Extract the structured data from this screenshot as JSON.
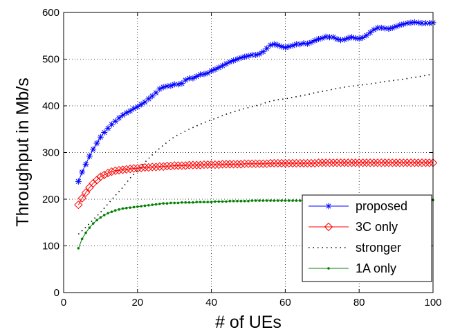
{
  "chart_data": {
    "type": "line",
    "title": "",
    "xlabel": "# of UEs",
    "ylabel": "Throughput in Mb/s",
    "xlim": [
      0,
      100
    ],
    "ylim": [
      0,
      600
    ],
    "xticks": [
      "0",
      "20",
      "40",
      "60",
      "80",
      "100"
    ],
    "yticks": [
      "0",
      "100",
      "200",
      "300",
      "400",
      "500",
      "600"
    ],
    "grid": true,
    "legend_position": "bottom-right",
    "series": [
      {
        "name": "proposed",
        "color": "#0000ff",
        "marker": "asterisk",
        "line": "solid",
        "x": [
          4,
          5,
          6,
          7,
          8,
          9,
          10,
          11,
          12,
          13,
          14,
          15,
          16,
          17,
          18,
          19,
          20,
          21,
          22,
          23,
          24,
          25,
          26,
          27,
          28,
          29,
          30,
          31,
          32,
          33,
          34,
          35,
          36,
          37,
          38,
          39,
          40,
          41,
          42,
          43,
          44,
          45,
          46,
          47,
          48,
          49,
          50,
          51,
          52,
          53,
          54,
          55,
          56,
          57,
          58,
          59,
          60,
          61,
          62,
          63,
          64,
          65,
          66,
          67,
          68,
          69,
          70,
          71,
          72,
          73,
          74,
          75,
          76,
          77,
          78,
          79,
          80,
          81,
          82,
          83,
          84,
          85,
          86,
          87,
          88,
          89,
          90,
          91,
          92,
          93,
          94,
          95,
          96,
          97,
          98,
          99,
          100
        ],
        "y": [
          238,
          258,
          275,
          292,
          307,
          320,
          333,
          343,
          352,
          360,
          367,
          374,
          380,
          385,
          389,
          394,
          398,
          403,
          408,
          415,
          421,
          428,
          436,
          440,
          442,
          443,
          446,
          446,
          448,
          455,
          459,
          459,
          463,
          467,
          468,
          470,
          475,
          478,
          482,
          486,
          490,
          494,
          497,
          500,
          503,
          505,
          507,
          509,
          509,
          511,
          516,
          523,
          530,
          532,
          530,
          527,
          525,
          527,
          529,
          532,
          532,
          534,
          533,
          536,
          540,
          543,
          545,
          548,
          547,
          547,
          543,
          541,
          542,
          545,
          547,
          545,
          544,
          546,
          551,
          557,
          563,
          567,
          567,
          566,
          565,
          567,
          570,
          573,
          575,
          577,
          578,
          579,
          578,
          577,
          577,
          577,
          578
        ]
      },
      {
        "name": "3C only",
        "color": "#ff0000",
        "marker": "diamond",
        "line": "solid",
        "x": [
          4,
          5,
          6,
          7,
          8,
          9,
          10,
          11,
          12,
          13,
          14,
          15,
          16,
          17,
          18,
          19,
          20,
          21,
          22,
          23,
          24,
          25,
          26,
          27,
          28,
          29,
          30,
          31,
          32,
          33,
          34,
          35,
          36,
          37,
          38,
          39,
          40,
          41,
          42,
          43,
          44,
          45,
          46,
          47,
          48,
          49,
          50,
          51,
          52,
          53,
          54,
          55,
          56,
          57,
          58,
          59,
          60,
          61,
          62,
          63,
          64,
          65,
          66,
          67,
          68,
          69,
          70,
          71,
          72,
          73,
          74,
          75,
          76,
          77,
          78,
          79,
          80,
          81,
          82,
          83,
          84,
          85,
          86,
          87,
          88,
          89,
          90,
          91,
          92,
          93,
          94,
          95,
          96,
          97,
          98,
          99,
          100
        ],
        "y": [
          188,
          202,
          214,
          225,
          234,
          241,
          248,
          252,
          256,
          259,
          261,
          262,
          263,
          264,
          265,
          266,
          266,
          267,
          268,
          268,
          269,
          269,
          270,
          270,
          271,
          271,
          272,
          272,
          272,
          272,
          273,
          273,
          273,
          273,
          274,
          274,
          274,
          274,
          274,
          275,
          275,
          275,
          275,
          275,
          275,
          276,
          276,
          276,
          276,
          276,
          276,
          276,
          277,
          277,
          277,
          277,
          277,
          277,
          277,
          277,
          277,
          277,
          277,
          277,
          277,
          278,
          278,
          278,
          278,
          278,
          278,
          278,
          278,
          278,
          278,
          278,
          278,
          278,
          278,
          278,
          278,
          278,
          278,
          278,
          278,
          278,
          278,
          278,
          278,
          278,
          278,
          278,
          278,
          278,
          278,
          278,
          278
        ]
      },
      {
        "name": "stronger",
        "color": "#000000",
        "marker": "none",
        "line": "dotted",
        "x": [
          4,
          6,
          8,
          10,
          12,
          14,
          16,
          18,
          20,
          22,
          24,
          26,
          28,
          30,
          32,
          34,
          36,
          38,
          40,
          42,
          44,
          46,
          48,
          50,
          52,
          54,
          56,
          58,
          60,
          62,
          64,
          66,
          68,
          70,
          72,
          74,
          76,
          78,
          80,
          82,
          84,
          86,
          88,
          90,
          92,
          94,
          96,
          98,
          100
        ],
        "y": [
          125,
          140,
          156,
          172,
          190,
          208,
          225,
          245,
          262,
          279,
          295,
          309,
          322,
          334,
          342,
          350,
          357,
          364,
          370,
          376,
          382,
          387,
          392,
          396,
          400,
          405,
          410,
          413,
          415,
          418,
          421,
          424,
          428,
          431,
          434,
          437,
          440,
          442,
          444,
          446,
          448,
          451,
          453,
          455,
          457,
          460,
          462,
          465,
          468
        ]
      },
      {
        "name": "1A only",
        "color": "#008000",
        "marker": "dot",
        "line": "solid",
        "x": [
          4,
          5,
          6,
          7,
          8,
          9,
          10,
          11,
          12,
          13,
          14,
          15,
          16,
          17,
          18,
          19,
          20,
          21,
          22,
          23,
          24,
          25,
          26,
          27,
          28,
          29,
          30,
          31,
          32,
          33,
          34,
          35,
          36,
          37,
          38,
          39,
          40,
          41,
          42,
          43,
          44,
          45,
          46,
          47,
          48,
          49,
          50,
          51,
          52,
          53,
          54,
          55,
          56,
          57,
          58,
          59,
          60,
          61,
          62,
          63,
          64,
          65,
          66,
          67,
          68,
          69,
          70,
          71,
          72,
          73,
          74,
          75,
          76,
          77,
          78,
          79,
          80,
          81,
          82,
          83,
          84,
          85,
          86,
          87,
          88,
          89,
          90,
          91,
          92,
          93,
          94,
          95,
          96,
          97,
          98,
          99,
          100
        ],
        "y": [
          95,
          115,
          128,
          139,
          148,
          155,
          161,
          166,
          170,
          173,
          176,
          178,
          180,
          181,
          182,
          183,
          184,
          185,
          186,
          187,
          188,
          189,
          190,
          191,
          191,
          192,
          192,
          192,
          193,
          193,
          193,
          193,
          194,
          194,
          194,
          194,
          194,
          195,
          195,
          195,
          195,
          196,
          196,
          196,
          196,
          196,
          196,
          197,
          197,
          197,
          197,
          197,
          197,
          197,
          197,
          197,
          197,
          197,
          197,
          197,
          197,
          197,
          197,
          197,
          197,
          198,
          198,
          198,
          198,
          198,
          198,
          198,
          198,
          198,
          198,
          198,
          198,
          198,
          198,
          198,
          198,
          198,
          198,
          198,
          198,
          198,
          198,
          198,
          198,
          198,
          198,
          198,
          198,
          198,
          198,
          198,
          198
        ]
      }
    ]
  }
}
